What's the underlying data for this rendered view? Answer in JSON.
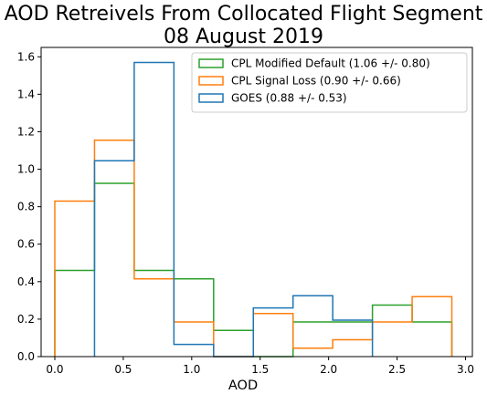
{
  "chart_data": {
    "type": "histogram-step",
    "title": "AOD Retreivels From Collocated Flight Segment",
    "subtitle": "08 August 2019",
    "xlabel": "AOD",
    "ylabel": "",
    "xlim": [
      -0.1,
      3.05
    ],
    "ylim": [
      0,
      1.65
    ],
    "xticks": [
      "0.0",
      "0.5",
      "1.0",
      "1.5",
      "2.0",
      "2.5",
      "3.0"
    ],
    "yticks": [
      "0.0",
      "0.2",
      "0.4",
      "0.6",
      "0.8",
      "1.0",
      "1.2",
      "1.4",
      "1.6"
    ],
    "legend_position": "top-right",
    "series": [
      {
        "name": "CPL Modified Default (1.06 +/- 0.80)",
        "color": "#2ca02c",
        "edges": [
          0.0,
          0.29,
          0.58,
          0.87,
          1.16,
          1.45,
          1.74,
          2.03,
          2.32,
          2.61,
          2.9
        ],
        "values": [
          0.46,
          0.925,
          0.46,
          0.415,
          0.14,
          0.0,
          0.185,
          0.185,
          0.275,
          0.185
        ]
      },
      {
        "name": "CPL Signal Loss (0.90 +/- 0.66)",
        "color": "#ff7f0e",
        "edges": [
          0.0,
          0.29,
          0.58,
          0.87,
          1.16,
          1.45,
          1.74,
          2.03,
          2.32,
          2.61,
          2.9
        ],
        "values": [
          0.83,
          1.155,
          0.415,
          0.185,
          0.0,
          0.23,
          0.045,
          0.09,
          0.185,
          0.32
        ]
      },
      {
        "name": "GOES (0.88 +/- 0.53)",
        "color": "#1f77b4",
        "edges": [
          0.29,
          0.58,
          0.87,
          1.16,
          1.45,
          1.74,
          2.03,
          2.32
        ],
        "values": [
          1.045,
          1.57,
          0.065,
          0.0,
          0.26,
          0.325,
          0.195
        ]
      }
    ]
  }
}
